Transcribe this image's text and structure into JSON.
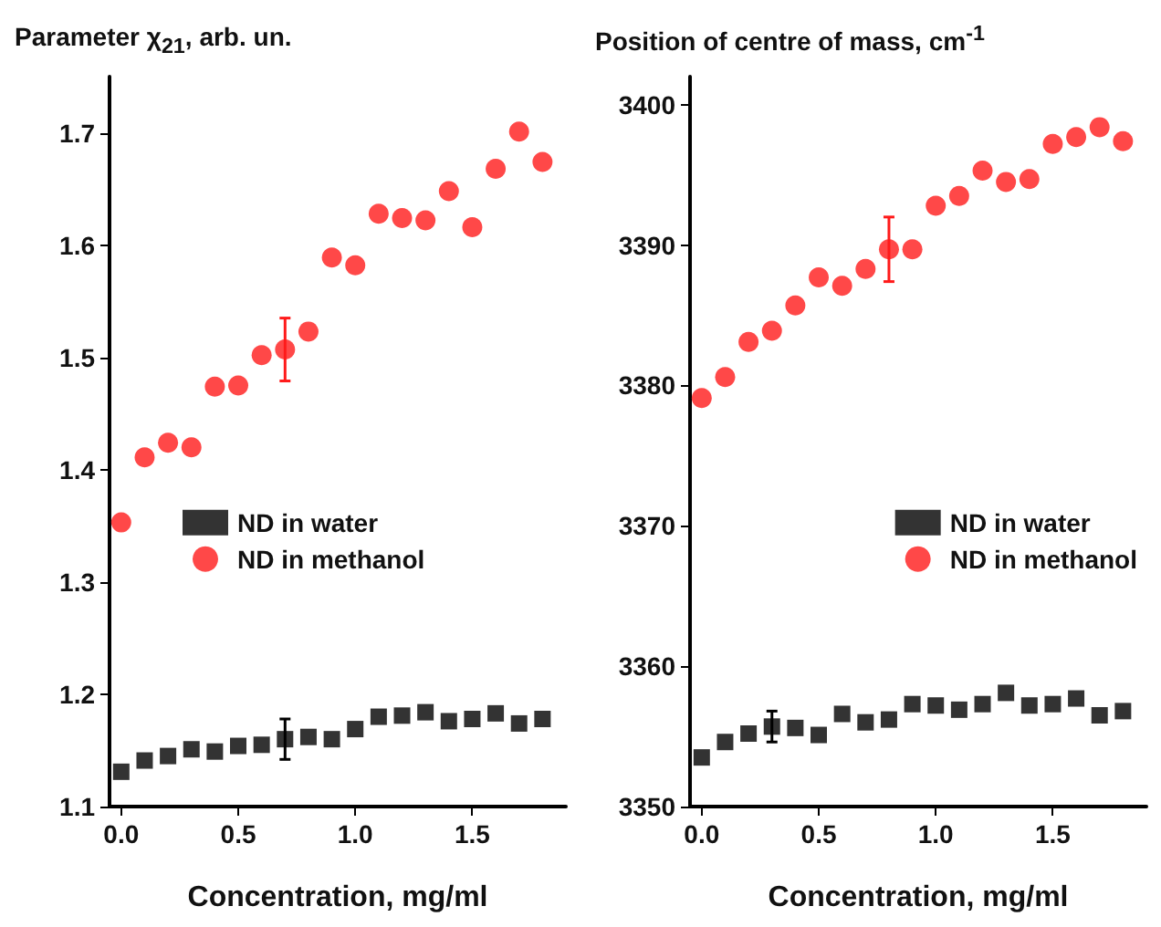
{
  "chart_data": [
    {
      "type": "scatter",
      "ylabel": "Parameter χ$_{21}$, arb. un.",
      "xlabel": "Concentration, mg/ml",
      "x": [
        0,
        0.1,
        0.2,
        0.3,
        0.4,
        0.5,
        0.6,
        0.7,
        0.8,
        0.9,
        1.0,
        1.1,
        1.2,
        1.3,
        1.4,
        1.5,
        1.6,
        1.7,
        1.8
      ],
      "xlim": [
        -0.05,
        1.9
      ],
      "xticks": [
        {
          "value": 0,
          "label": "0.0"
        },
        {
          "value": 0.5,
          "label": "0.5"
        },
        {
          "value": 1,
          "label": "1.0"
        },
        {
          "value": 1.5,
          "label": "1.5"
        }
      ],
      "ylim": [
        1.1,
        1.75
      ],
      "yticks": [
        1.1,
        1.2,
        1.3,
        1.4,
        1.5,
        1.6,
        1.7
      ],
      "grid": false,
      "legend": "center left",
      "series": [
        {
          "name": "ND in water",
          "color": "#000000",
          "marker": "square",
          "values": [
            1.131,
            1.141,
            1.145,
            1.151,
            1.149,
            1.154,
            1.155,
            1.16,
            1.162,
            1.16,
            1.169,
            1.18,
            1.181,
            1.184,
            1.176,
            1.178,
            1.183,
            1.174,
            1.178
          ],
          "errors": [
            null,
            null,
            null,
            null,
            null,
            null,
            null,
            0.018,
            null,
            null,
            null,
            null,
            null,
            null,
            null,
            null,
            null,
            null,
            null
          ]
        },
        {
          "name": "ND in methanol",
          "color": "#ff1a1a",
          "marker": "circle",
          "values": [
            1.353,
            1.411,
            1.424,
            1.42,
            1.474,
            1.475,
            1.502,
            1.507,
            1.523,
            1.589,
            1.582,
            1.628,
            1.624,
            1.622,
            1.648,
            1.616,
            1.668,
            1.701,
            1.674
          ],
          "errors": [
            null,
            null,
            null,
            null,
            null,
            null,
            null,
            0.028,
            null,
            null,
            null,
            null,
            null,
            null,
            null,
            null,
            null,
            null,
            null
          ]
        }
      ]
    },
    {
      "type": "scatter",
      "ylabel": "Position of centre of mass, cm$^{-1}$",
      "xlabel": "Concentration, mg/ml",
      "x": [
        0,
        0.1,
        0.2,
        0.3,
        0.4,
        0.5,
        0.6,
        0.7,
        0.8,
        0.9,
        1.0,
        1.1,
        1.2,
        1.3,
        1.4,
        1.5,
        1.6,
        1.7,
        1.8
      ],
      "xlim": [
        -0.05,
        1.9
      ],
      "xticks": [
        {
          "value": 0,
          "label": "0.0"
        },
        {
          "value": 0.5,
          "label": "0.5"
        },
        {
          "value": 1,
          "label": "1.0"
        },
        {
          "value": 1.5,
          "label": "1.5"
        }
      ],
      "ylim": [
        3350,
        3402
      ],
      "yticks": [
        3350,
        3360,
        3370,
        3380,
        3390,
        3400
      ],
      "grid": false,
      "legend": "center right",
      "series": [
        {
          "name": "ND in water",
          "color": "#000000",
          "marker": "square",
          "values": [
            3353.5,
            3354.6,
            3355.2,
            3355.7,
            3355.6,
            3355.1,
            3356.6,
            3356.0,
            3356.2,
            3357.3,
            3357.2,
            3356.9,
            3357.3,
            3358.1,
            3357.2,
            3357.3,
            3357.7,
            3356.5,
            3356.8
          ],
          "errors": [
            null,
            null,
            null,
            1.1,
            null,
            null,
            null,
            null,
            null,
            null,
            null,
            null,
            null,
            null,
            null,
            null,
            null,
            null,
            null
          ]
        },
        {
          "name": "ND in methanol",
          "color": "#ff1a1a",
          "marker": "circle",
          "values": [
            3379.1,
            3380.6,
            3383.1,
            3383.9,
            3385.7,
            3387.7,
            3387.1,
            3388.3,
            3389.7,
            3389.7,
            3392.8,
            3393.5,
            3395.3,
            3394.5,
            3394.7,
            3397.2,
            3397.7,
            3398.4,
            3397.4
          ],
          "errors": [
            null,
            null,
            null,
            null,
            null,
            null,
            null,
            null,
            2.3,
            null,
            null,
            null,
            null,
            null,
            null,
            null,
            null,
            null,
            null
          ]
        }
      ]
    }
  ]
}
